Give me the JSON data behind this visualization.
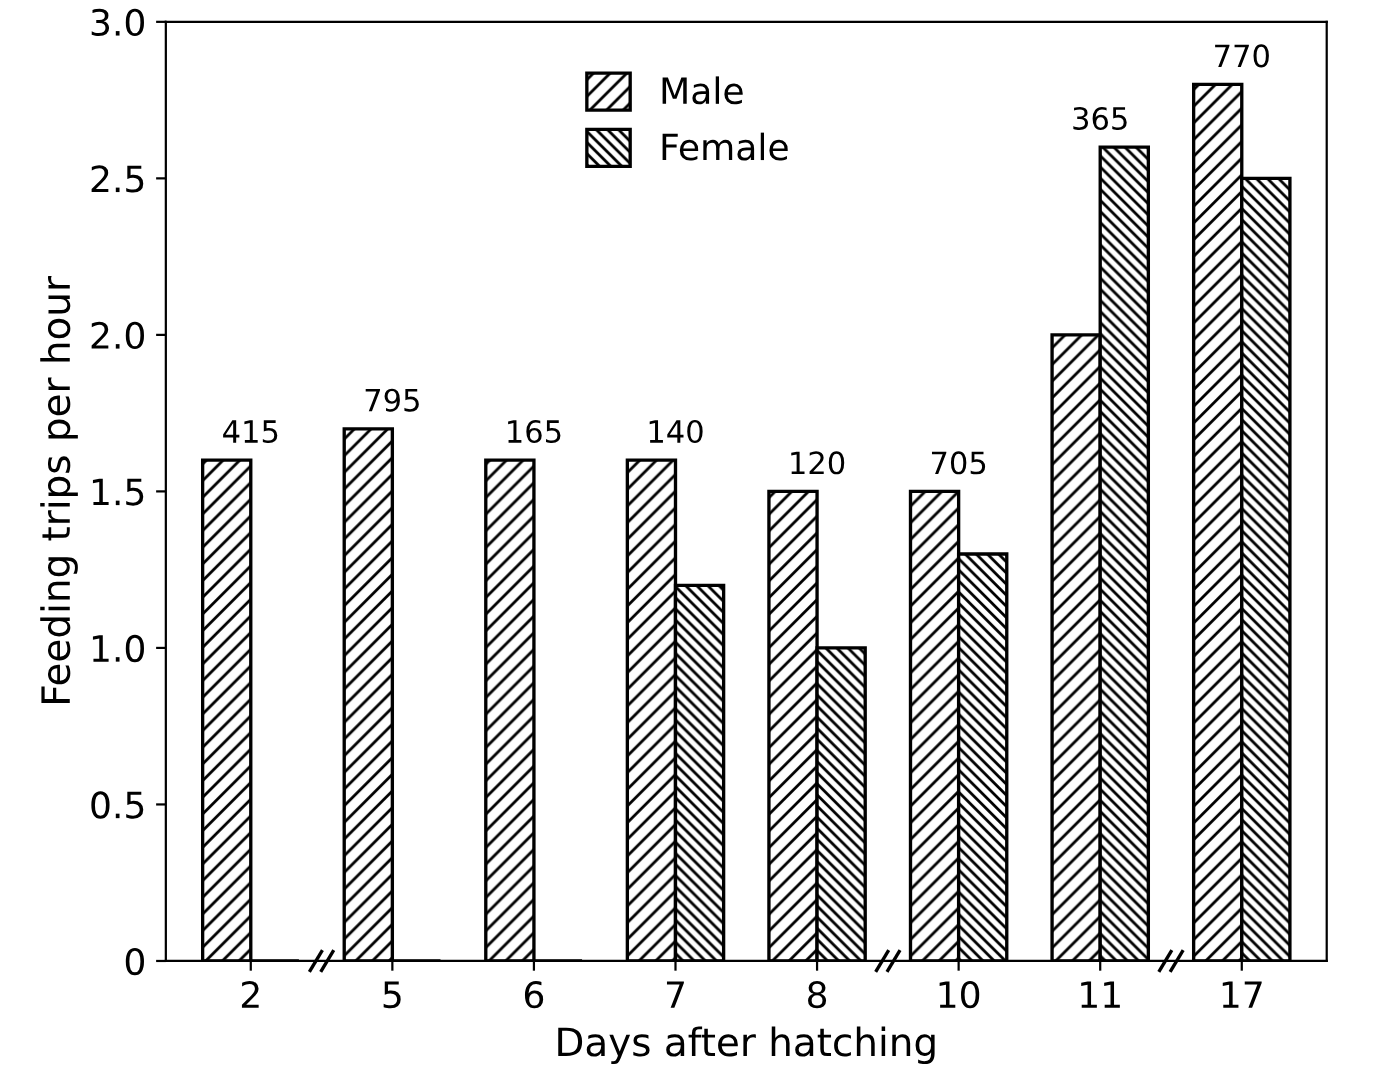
{
  "chart_data": {
    "type": "bar",
    "xlabel": "Days after hatching",
    "ylabel": "Feeding trips per hour",
    "categories": [
      "2",
      "5",
      "6",
      "7",
      "8",
      "10",
      "11",
      "17"
    ],
    "series": [
      {
        "name": "Male",
        "color": "#000000",
        "values": [
          1.6,
          1.7,
          1.6,
          1.6,
          1.5,
          1.5,
          2.0,
          2.8
        ]
      },
      {
        "name": "Female",
        "color": "#000000",
        "values": [
          0,
          0,
          0,
          1.2,
          1.0,
          1.3,
          2.6,
          2.5
        ]
      }
    ],
    "annotations": [
      {
        "text": "415",
        "x": "2",
        "y": 1.6
      },
      {
        "text": "795",
        "x": "5",
        "y": 1.7
      },
      {
        "text": "165",
        "x": "6",
        "y": 1.6
      },
      {
        "text": "140",
        "x": "7",
        "y": 1.6
      },
      {
        "text": "120",
        "x": "8",
        "y": 1.5
      },
      {
        "text": "705",
        "x": "10",
        "y": 1.5
      },
      {
        "text": "365",
        "x": "11",
        "y": 2.6
      },
      {
        "text": "770",
        "x": "17",
        "y": 2.8
      }
    ],
    "ylim": [
      0,
      3.0
    ],
    "yticks": [
      {
        "value": 0,
        "label": "0"
      },
      0.5,
      {
        "value": 1,
        "label": "1.0"
      },
      1.5,
      {
        "value": 2,
        "label": "2.0"
      },
      2.5,
      {
        "value": 3,
        "label": "3.0"
      }
    ],
    "legend": "top",
    "grid": false
  }
}
